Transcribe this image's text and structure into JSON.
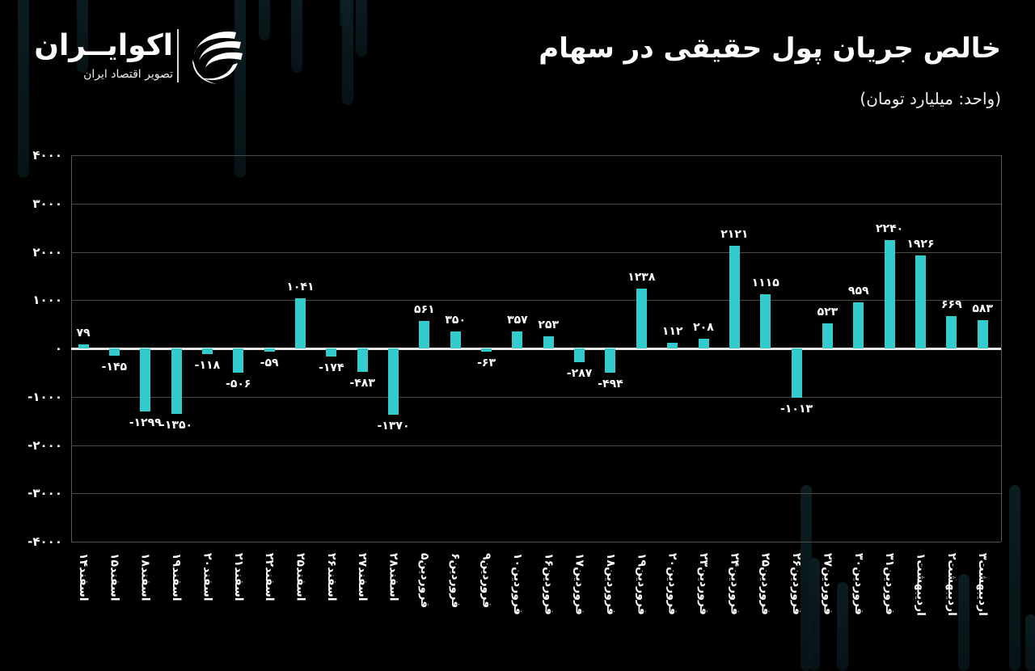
{
  "header": {
    "title": "خالص جریان پول حقیقی در سهام",
    "subtitle": "(واحد: میلیارد تومان)"
  },
  "logo": {
    "name": "اکوایــران",
    "tagline": "تصویر اقتصاد ایران"
  },
  "colors": {
    "background": "#000000",
    "bar": "#33cccc",
    "gridline": "#4a4a4a",
    "zeroline": "#e6e6e6",
    "text": "#ffffff"
  },
  "chart_data": {
    "type": "bar",
    "title": "خالص جریان پول حقیقی در سهام",
    "subtitle": "(واحد: میلیارد تومان)",
    "xlabel": "",
    "ylabel": "میلیارد تومان",
    "ylim": [
      -4000,
      4000
    ],
    "yticks": [
      4000,
      3000,
      2000,
      1000,
      0,
      -1000,
      -2000,
      -3000,
      -4000
    ],
    "ytick_labels": [
      "۴۰۰۰",
      "۳۰۰۰",
      "۲۰۰۰",
      "۱۰۰۰",
      "۰",
      "-۱۰۰۰",
      "-۲۰۰۰",
      "-۳۰۰۰",
      "-۴۰۰۰"
    ],
    "grid": true,
    "legend": "none",
    "categories": [
      "اسفند۱۴",
      "اسفند۱۵",
      "اسفند۱۸",
      "اسفند۱۹",
      "اسفند۲۰",
      "اسفند۲۱",
      "اسفند۲۲",
      "اسفند۲۵",
      "اسفند۲۶",
      "اسفند۲۷",
      "اسفند۲۸",
      "فروردین۵",
      "فروردین۶",
      "فروردین۹",
      "فروردین۱۰",
      "فروردین۱۶",
      "فروردین۱۷",
      "فروردین۱۸",
      "فروردین۱۹",
      "فروردین۲۰",
      "فروردین۲۳",
      "فروردین۲۴",
      "فروردین۲۵",
      "فروردین۲۶",
      "فروردین۲۷",
      "فروردین۳۰",
      "فروردین۳۱",
      "اردیبهشت۱",
      "اردیبهشت۲",
      "اردیبهشت۳"
    ],
    "values": [
      79,
      -145,
      -1299,
      -1350,
      -118,
      -506,
      -59,
      1041,
      -174,
      -483,
      -1370,
      561,
      350,
      -63,
      357,
      253,
      -287,
      -494,
      1238,
      112,
      208,
      2121,
      1115,
      -1013,
      523,
      959,
      2240,
      1926,
      669,
      583
    ],
    "value_labels": [
      "۷۹",
      "-۱۴۵",
      "-۱۲۹۹",
      "-۱۳۵۰",
      "-۱۱۸",
      "-۵۰۶",
      "-۵۹",
      "۱۰۴۱",
      "-۱۷۴",
      "-۴۸۳",
      "-۱۳۷۰",
      "۵۶۱",
      "۳۵۰",
      "-۶۳",
      "۳۵۷",
      "۲۵۳",
      "-۲۸۷",
      "-۴۹۴",
      "۱۲۳۸",
      "۱۱۲",
      "۲۰۸",
      "۲۱۲۱",
      "۱۱۱۵",
      "-۱۰۱۳",
      "۵۲۳",
      "۹۵۹",
      "۲۲۴۰",
      "۱۹۲۶",
      "۶۶۹",
      "۵۸۳"
    ]
  }
}
